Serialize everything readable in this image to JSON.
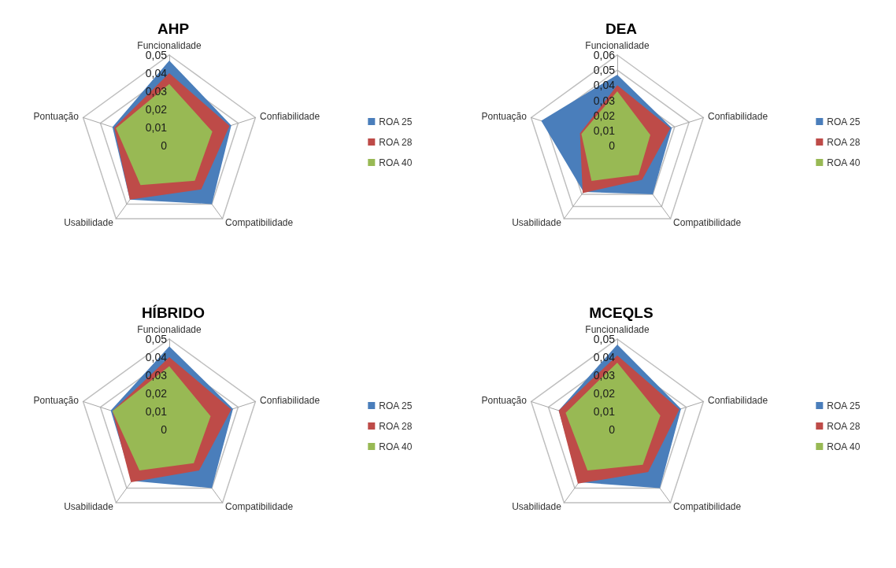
{
  "chart_data": [
    {
      "type": "radar",
      "title": "AHP",
      "categories": [
        "Funcionalidade",
        "Confiabilidade",
        "Compatibilidade",
        "Usabilidade",
        "Pontuação"
      ],
      "ylim": [
        0,
        0.05
      ],
      "yticks": [
        {
          "value": 0,
          "label": "0"
        },
        {
          "value": 0.01,
          "label": "0,01"
        },
        {
          "value": 0.02,
          "label": "0,02"
        },
        {
          "value": 0.03,
          "label": "0,03"
        },
        {
          "value": 0.04,
          "label": "0,04"
        },
        {
          "value": 0.05,
          "label": "0,05"
        }
      ],
      "grid": true,
      "legend": "right",
      "series": [
        {
          "name": "ROA 25",
          "color": "#4a7ebb",
          "values": [
            0.047,
            0.036,
            0.04,
            0.037,
            0.033
          ]
        },
        {
          "name": "ROA 28",
          "color": "#be4b48",
          "values": [
            0.04,
            0.035,
            0.03,
            0.037,
            0.032
          ]
        },
        {
          "name": "ROA 40",
          "color": "#98b954",
          "values": [
            0.034,
            0.025,
            0.024,
            0.027,
            0.031
          ]
        }
      ]
    },
    {
      "type": "radar",
      "title": "DEA",
      "categories": [
        "Funcionalidade",
        "Confiabilidade",
        "Compatibilidade",
        "Usabilidade",
        "Pontuação"
      ],
      "ylim": [
        0,
        0.06
      ],
      "yticks": [
        {
          "value": 0,
          "label": "0"
        },
        {
          "value": 0.01,
          "label": "0,01"
        },
        {
          "value": 0.02,
          "label": "0,02"
        },
        {
          "value": 0.03,
          "label": "0,03"
        },
        {
          "value": 0.04,
          "label": "0,04"
        },
        {
          "value": 0.05,
          "label": "0,05"
        },
        {
          "value": 0.06,
          "label": "0,06"
        }
      ],
      "grid": true,
      "legend": "right",
      "series": [
        {
          "name": "ROA 25",
          "color": "#4a7ebb",
          "values": [
            0.047,
            0.038,
            0.04,
            0.038,
            0.053
          ]
        },
        {
          "name": "ROA 28",
          "color": "#be4b48",
          "values": [
            0.04,
            0.037,
            0.028,
            0.039,
            0.026
          ]
        },
        {
          "name": "ROA 40",
          "color": "#98b954",
          "values": [
            0.036,
            0.023,
            0.024,
            0.029,
            0.025
          ]
        }
      ]
    },
    {
      "type": "radar",
      "title": "HÍBRIDO",
      "categories": [
        "Funcionalidade",
        "Confiabilidade",
        "Compatibilidade",
        "Usabilidade",
        "Pontuação"
      ],
      "ylim": [
        0,
        0.05
      ],
      "yticks": [
        {
          "value": 0,
          "label": "0"
        },
        {
          "value": 0.01,
          "label": "0,01"
        },
        {
          "value": 0.02,
          "label": "0,02"
        },
        {
          "value": 0.03,
          "label": "0,03"
        },
        {
          "value": 0.04,
          "label": "0,04"
        },
        {
          "value": 0.05,
          "label": "0,05"
        }
      ],
      "grid": true,
      "legend": "right",
      "series": [
        {
          "name": "ROA 25",
          "color": "#4a7ebb",
          "values": [
            0.046,
            0.037,
            0.04,
            0.035,
            0.034
          ]
        },
        {
          "name": "ROA 28",
          "color": "#be4b48",
          "values": [
            0.04,
            0.036,
            0.028,
            0.036,
            0.033
          ]
        },
        {
          "name": "ROA 40",
          "color": "#98b954",
          "values": [
            0.035,
            0.024,
            0.023,
            0.028,
            0.033
          ]
        }
      ]
    },
    {
      "type": "radar",
      "title": "MCEQLS",
      "categories": [
        "Funcionalidade",
        "Confiabilidade",
        "Compatibilidade",
        "Usabilidade",
        "Pontuação"
      ],
      "ylim": [
        0,
        0.05
      ],
      "yticks": [
        {
          "value": 0,
          "label": "0"
        },
        {
          "value": 0.01,
          "label": "0,01"
        },
        {
          "value": 0.02,
          "label": "0,02"
        },
        {
          "value": 0.03,
          "label": "0,03"
        },
        {
          "value": 0.04,
          "label": "0,04"
        },
        {
          "value": 0.05,
          "label": "0,05"
        }
      ],
      "grid": true,
      "legend": "right",
      "series": [
        {
          "name": "ROA 25",
          "color": "#4a7ebb",
          "values": [
            0.047,
            0.037,
            0.04,
            0.036,
            0.034
          ]
        },
        {
          "name": "ROA 28",
          "color": "#be4b48",
          "values": [
            0.041,
            0.036,
            0.029,
            0.037,
            0.034
          ]
        },
        {
          "name": "ROA 40",
          "color": "#98b954",
          "values": [
            0.037,
            0.025,
            0.024,
            0.028,
            0.03
          ]
        }
      ]
    }
  ]
}
